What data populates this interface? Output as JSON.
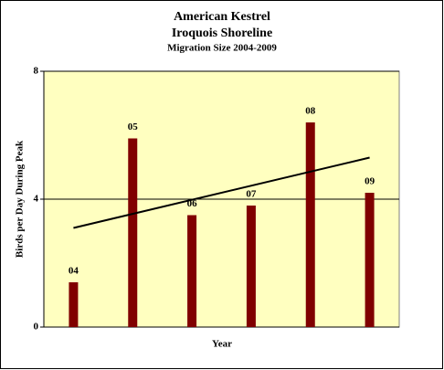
{
  "chart_data": {
    "type": "bar",
    "title": "American Kestrel",
    "subtitle": "Iroquois Shoreline",
    "caption": "Migration Size 2004-2009",
    "x_label": "Year",
    "y_label": "Birds per Day During Peak",
    "categories": [
      "04",
      "05",
      "06",
      "07",
      "08",
      "09"
    ],
    "values": [
      1.4,
      5.9,
      3.5,
      3.8,
      6.4,
      4.2
    ],
    "color": "#800000",
    "trendline": {
      "values": [
        3.1,
        5.3
      ],
      "color": "#000000"
    },
    "ylim": [
      0,
      8
    ],
    "yticks": [
      0,
      4,
      8
    ],
    "grid": true,
    "plot_background": "#ffffc0"
  }
}
